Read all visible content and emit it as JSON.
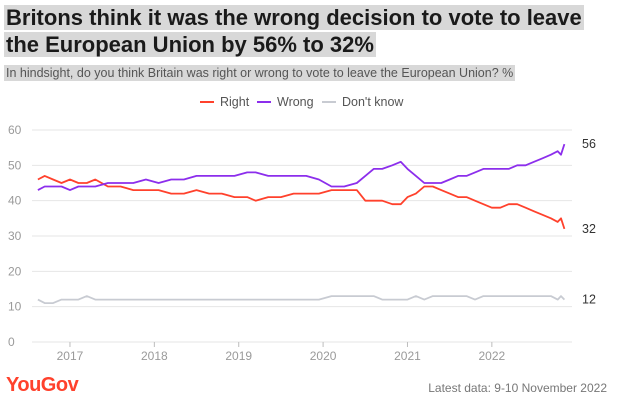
{
  "header": {
    "title_line1": "Britons think it was the wrong decision to vote to leave",
    "title_line2": "the European Union by 56% to 32%",
    "subtitle": "In hindsight, do you think Britain was right or wrong to vote to leave the European Union? %"
  },
  "footer": {
    "logo": "YouGov",
    "latest": "Latest data: 9-10 November 2022"
  },
  "chart_data": {
    "type": "line",
    "title": "Britons think it was the wrong decision to vote to leave the European Union by 56% to 32%",
    "subtitle": "In hindsight, do you think Britain was right or wrong to vote to leave the European Union? %",
    "ylim": [
      0,
      60
    ],
    "yticks": [
      0,
      10,
      20,
      30,
      40,
      50,
      60
    ],
    "xlim": [
      2016.55,
      2022.95
    ],
    "xticks": [
      {
        "label": "2017",
        "value": 2017
      },
      {
        "label": "2018",
        "value": 2018
      },
      {
        "label": "2019",
        "value": 2019
      },
      {
        "label": "2020",
        "value": 2020
      },
      {
        "label": "2021",
        "value": 2021
      },
      {
        "label": "2022",
        "value": 2022
      }
    ],
    "legend_position": "top-center",
    "grid": "horizontal",
    "series": [
      {
        "name": "Right",
        "color": "#ff412c",
        "end_label": "32",
        "points": [
          [
            2016.62,
            46
          ],
          [
            2016.7,
            47
          ],
          [
            2016.8,
            46
          ],
          [
            2016.9,
            45
          ],
          [
            2017.0,
            46
          ],
          [
            2017.1,
            45
          ],
          [
            2017.2,
            45
          ],
          [
            2017.3,
            46
          ],
          [
            2017.45,
            44
          ],
          [
            2017.6,
            44
          ],
          [
            2017.75,
            43
          ],
          [
            2017.9,
            43
          ],
          [
            2018.05,
            43
          ],
          [
            2018.2,
            42
          ],
          [
            2018.35,
            42
          ],
          [
            2018.5,
            43
          ],
          [
            2018.65,
            42
          ],
          [
            2018.8,
            42
          ],
          [
            2018.95,
            41
          ],
          [
            2019.1,
            41
          ],
          [
            2019.2,
            40
          ],
          [
            2019.35,
            41
          ],
          [
            2019.5,
            41
          ],
          [
            2019.65,
            42
          ],
          [
            2019.8,
            42
          ],
          [
            2019.95,
            42
          ],
          [
            2020.1,
            43
          ],
          [
            2020.25,
            43
          ],
          [
            2020.4,
            43
          ],
          [
            2020.5,
            40
          ],
          [
            2020.6,
            40
          ],
          [
            2020.7,
            40
          ],
          [
            2020.82,
            39
          ],
          [
            2020.92,
            39
          ],
          [
            2021.0,
            41
          ],
          [
            2021.1,
            42
          ],
          [
            2021.2,
            44
          ],
          [
            2021.3,
            44
          ],
          [
            2021.4,
            43
          ],
          [
            2021.5,
            42
          ],
          [
            2021.6,
            41
          ],
          [
            2021.7,
            41
          ],
          [
            2021.8,
            40
          ],
          [
            2021.9,
            39
          ],
          [
            2022.0,
            38
          ],
          [
            2022.1,
            38
          ],
          [
            2022.2,
            39
          ],
          [
            2022.3,
            39
          ],
          [
            2022.4,
            38
          ],
          [
            2022.5,
            37
          ],
          [
            2022.6,
            36
          ],
          [
            2022.7,
            35
          ],
          [
            2022.78,
            34
          ],
          [
            2022.82,
            35
          ],
          [
            2022.86,
            32
          ]
        ]
      },
      {
        "name": "Wrong",
        "color": "#8c2eec",
        "end_label": "56",
        "points": [
          [
            2016.62,
            43
          ],
          [
            2016.7,
            44
          ],
          [
            2016.8,
            44
          ],
          [
            2016.9,
            44
          ],
          [
            2017.0,
            43
          ],
          [
            2017.1,
            44
          ],
          [
            2017.2,
            44
          ],
          [
            2017.3,
            44
          ],
          [
            2017.45,
            45
          ],
          [
            2017.6,
            45
          ],
          [
            2017.75,
            45
          ],
          [
            2017.9,
            46
          ],
          [
            2018.05,
            45
          ],
          [
            2018.2,
            46
          ],
          [
            2018.35,
            46
          ],
          [
            2018.5,
            47
          ],
          [
            2018.65,
            47
          ],
          [
            2018.8,
            47
          ],
          [
            2018.95,
            47
          ],
          [
            2019.1,
            48
          ],
          [
            2019.2,
            48
          ],
          [
            2019.35,
            47
          ],
          [
            2019.5,
            47
          ],
          [
            2019.65,
            47
          ],
          [
            2019.8,
            47
          ],
          [
            2019.95,
            46
          ],
          [
            2020.1,
            44
          ],
          [
            2020.25,
            44
          ],
          [
            2020.4,
            45
          ],
          [
            2020.5,
            47
          ],
          [
            2020.6,
            49
          ],
          [
            2020.7,
            49
          ],
          [
            2020.82,
            50
          ],
          [
            2020.92,
            51
          ],
          [
            2021.0,
            49
          ],
          [
            2021.1,
            47
          ],
          [
            2021.2,
            45
          ],
          [
            2021.3,
            45
          ],
          [
            2021.4,
            45
          ],
          [
            2021.5,
            46
          ],
          [
            2021.6,
            47
          ],
          [
            2021.7,
            47
          ],
          [
            2021.8,
            48
          ],
          [
            2021.9,
            49
          ],
          [
            2022.0,
            49
          ],
          [
            2022.1,
            49
          ],
          [
            2022.2,
            49
          ],
          [
            2022.3,
            50
          ],
          [
            2022.4,
            50
          ],
          [
            2022.5,
            51
          ],
          [
            2022.6,
            52
          ],
          [
            2022.7,
            53
          ],
          [
            2022.78,
            54
          ],
          [
            2022.82,
            53
          ],
          [
            2022.86,
            56
          ]
        ]
      },
      {
        "name": "Don't know",
        "color": "#c8cbd2",
        "end_label": "12",
        "points": [
          [
            2016.62,
            12
          ],
          [
            2016.7,
            11
          ],
          [
            2016.8,
            11
          ],
          [
            2016.9,
            12
          ],
          [
            2017.0,
            12
          ],
          [
            2017.1,
            12
          ],
          [
            2017.2,
            13
          ],
          [
            2017.3,
            12
          ],
          [
            2017.45,
            12
          ],
          [
            2017.6,
            12
          ],
          [
            2017.75,
            12
          ],
          [
            2017.9,
            12
          ],
          [
            2018.05,
            12
          ],
          [
            2018.2,
            12
          ],
          [
            2018.35,
            12
          ],
          [
            2018.5,
            12
          ],
          [
            2018.65,
            12
          ],
          [
            2018.8,
            12
          ],
          [
            2018.95,
            12
          ],
          [
            2019.1,
            12
          ],
          [
            2019.2,
            12
          ],
          [
            2019.35,
            12
          ],
          [
            2019.5,
            12
          ],
          [
            2019.65,
            12
          ],
          [
            2019.8,
            12
          ],
          [
            2019.95,
            12
          ],
          [
            2020.1,
            13
          ],
          [
            2020.25,
            13
          ],
          [
            2020.4,
            13
          ],
          [
            2020.5,
            13
          ],
          [
            2020.6,
            13
          ],
          [
            2020.7,
            12
          ],
          [
            2020.82,
            12
          ],
          [
            2020.92,
            12
          ],
          [
            2021.0,
            12
          ],
          [
            2021.1,
            13
          ],
          [
            2021.2,
            12
          ],
          [
            2021.3,
            13
          ],
          [
            2021.4,
            13
          ],
          [
            2021.5,
            13
          ],
          [
            2021.6,
            13
          ],
          [
            2021.7,
            13
          ],
          [
            2021.8,
            12
          ],
          [
            2021.9,
            13
          ],
          [
            2022.0,
            13
          ],
          [
            2022.1,
            13
          ],
          [
            2022.2,
            13
          ],
          [
            2022.3,
            13
          ],
          [
            2022.4,
            13
          ],
          [
            2022.5,
            13
          ],
          [
            2022.6,
            13
          ],
          [
            2022.7,
            13
          ],
          [
            2022.78,
            12
          ],
          [
            2022.82,
            13
          ],
          [
            2022.86,
            12
          ]
        ]
      }
    ]
  }
}
